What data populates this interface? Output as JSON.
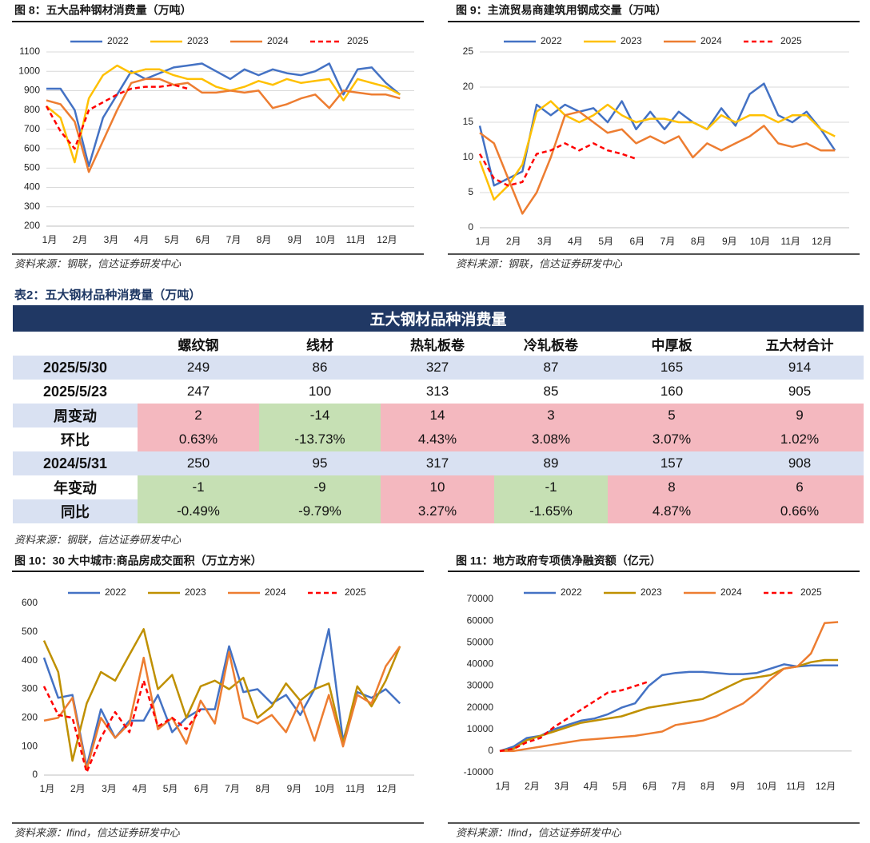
{
  "chart_data": [
    {
      "type": "line",
      "title": "图 8：五大品种钢材消费量（万吨）",
      "source": "资料来源：钢联，信达证券研发中心",
      "x": [
        1,
        3,
        5,
        7,
        9,
        11,
        13,
        15,
        17,
        19,
        21,
        23,
        25,
        27,
        29,
        31,
        33,
        35,
        37,
        39,
        41,
        43,
        45,
        47,
        49,
        51
      ],
      "xlim": [
        1,
        53
      ],
      "xticks": [
        {
          "value": 1,
          "label": "1月"
        },
        {
          "value": 5.3,
          "label": "2月"
        },
        {
          "value": 9.7,
          "label": "3月"
        },
        {
          "value": 14,
          "label": "4月"
        },
        {
          "value": 18.3,
          "label": "5月"
        },
        {
          "value": 22.7,
          "label": "6月"
        },
        {
          "value": 27,
          "label": "7月"
        },
        {
          "value": 31.3,
          "label": "8月"
        },
        {
          "value": 35.7,
          "label": "9月"
        },
        {
          "value": 40,
          "label": "10月"
        },
        {
          "value": 44.3,
          "label": "11月"
        },
        {
          "value": 48.7,
          "label": "12月"
        }
      ],
      "ylim": [
        200,
        1100
      ],
      "yticks": [
        200,
        300,
        400,
        500,
        600,
        700,
        800,
        900,
        1000,
        1100
      ],
      "grid": true,
      "series": [
        {
          "name": "2022",
          "color": "#4472c4",
          "values": [
            910,
            910,
            800,
            510,
            760,
            880,
            1000,
            960,
            990,
            1020,
            1030,
            1040,
            1000,
            960,
            1010,
            980,
            1010,
            990,
            980,
            1000,
            1040,
            880,
            1010,
            1020,
            940,
            880
          ]
        },
        {
          "name": "2023",
          "color": "#ffc000",
          "values": [
            820,
            760,
            530,
            860,
            980,
            1030,
            990,
            1010,
            1010,
            980,
            960,
            960,
            920,
            900,
            920,
            950,
            930,
            960,
            940,
            950,
            960,
            850,
            960,
            940,
            920,
            880
          ]
        },
        {
          "name": "2024",
          "color": "#ed7d31",
          "values": [
            850,
            830,
            740,
            480,
            640,
            800,
            940,
            960,
            960,
            930,
            940,
            890,
            890,
            900,
            890,
            900,
            810,
            830,
            860,
            880,
            810,
            900,
            890,
            880,
            880,
            860
          ]
        },
        {
          "name": "2025",
          "color": "#ff0000",
          "dashed": true,
          "values": [
            820,
            690,
            600,
            800,
            840,
            880,
            910,
            920,
            920,
            930,
            910,
            null,
            null,
            null,
            null,
            null,
            null,
            null,
            null,
            null,
            null,
            null,
            null,
            null,
            null,
            null
          ]
        }
      ]
    },
    {
      "type": "line",
      "title": "图 9：主流贸易商建筑用钢成交量（万吨）",
      "source": "资料来源：钢联，信达证券研发中心",
      "x": [
        1,
        3,
        5,
        7,
        9,
        11,
        13,
        15,
        17,
        19,
        21,
        23,
        25,
        27,
        29,
        31,
        33,
        35,
        37,
        39,
        41,
        43,
        45,
        47,
        49,
        51
      ],
      "xlim": [
        1,
        53
      ],
      "xticks": [
        {
          "value": 1,
          "label": "1月"
        },
        {
          "value": 5.3,
          "label": "2月"
        },
        {
          "value": 9.7,
          "label": "3月"
        },
        {
          "value": 14,
          "label": "4月"
        },
        {
          "value": 18.3,
          "label": "5月"
        },
        {
          "value": 22.7,
          "label": "6月"
        },
        {
          "value": 27,
          "label": "7月"
        },
        {
          "value": 31.3,
          "label": "8月"
        },
        {
          "value": 35.7,
          "label": "9月"
        },
        {
          "value": 40,
          "label": "10月"
        },
        {
          "value": 44.3,
          "label": "11月"
        },
        {
          "value": 48.7,
          "label": "12月"
        }
      ],
      "ylim": [
        0,
        25
      ],
      "yticks": [
        0,
        5,
        10,
        15,
        20,
        25
      ],
      "grid": true,
      "series": [
        {
          "name": "2022",
          "color": "#4472c4",
          "values": [
            14.5,
            6,
            7,
            8,
            17.5,
            16,
            17.5,
            16.5,
            17,
            15,
            18,
            14,
            16.5,
            14,
            16.5,
            15,
            14,
            17,
            14.5,
            19,
            20.5,
            16,
            15,
            16.5,
            14,
            11
          ]
        },
        {
          "name": "2023",
          "color": "#ffc000",
          "values": [
            9.5,
            4,
            6,
            9,
            16.5,
            18,
            16,
            15,
            16,
            17.5,
            16,
            15,
            15.5,
            15.5,
            15,
            15,
            14,
            16,
            15,
            16,
            16,
            15,
            16,
            16,
            14,
            13
          ]
        },
        {
          "name": "2024",
          "color": "#ed7d31",
          "values": [
            13.5,
            12,
            7,
            2,
            5,
            10,
            16,
            16.5,
            15,
            13.5,
            14,
            12,
            13,
            12,
            13,
            10,
            12,
            11,
            12,
            13,
            14.5,
            12,
            11.5,
            12,
            11,
            11
          ]
        },
        {
          "name": "2025",
          "color": "#ff0000",
          "dashed": true,
          "values": [
            10.5,
            7,
            6,
            6.5,
            10.5,
            11,
            12,
            11,
            12,
            11,
            10.5,
            9.8,
            null,
            null,
            null,
            null,
            null,
            null,
            null,
            null,
            null,
            null,
            null,
            null,
            null,
            null
          ]
        }
      ]
    },
    {
      "type": "line",
      "title": "图 10：30 大中城市:商品房成交面积（万立方米）",
      "source": "资料来源：Ifind，信达证券研发中心",
      "x": [
        1,
        3,
        5,
        7,
        9,
        11,
        13,
        15,
        17,
        19,
        21,
        23,
        25,
        27,
        29,
        31,
        33,
        35,
        37,
        39,
        41,
        43,
        45,
        47,
        49,
        51
      ],
      "xlim": [
        1,
        53
      ],
      "xticks": [
        {
          "value": 1,
          "label": "1月"
        },
        {
          "value": 5.3,
          "label": "2月"
        },
        {
          "value": 9.7,
          "label": "3月"
        },
        {
          "value": 14,
          "label": "4月"
        },
        {
          "value": 18.3,
          "label": "5月"
        },
        {
          "value": 22.7,
          "label": "6月"
        },
        {
          "value": 27,
          "label": "7月"
        },
        {
          "value": 31.3,
          "label": "8月"
        },
        {
          "value": 35.7,
          "label": "9月"
        },
        {
          "value": 40,
          "label": "10月"
        },
        {
          "value": 44.3,
          "label": "11月"
        },
        {
          "value": 48.7,
          "label": "12月"
        }
      ],
      "ylim": [
        0,
        600
      ],
      "yticks": [
        0,
        100,
        200,
        300,
        400,
        500,
        600
      ],
      "grid": false,
      "series": [
        {
          "name": "2022",
          "color": "#4472c4",
          "values": [
            410,
            270,
            280,
            30,
            230,
            130,
            190,
            190,
            280,
            150,
            200,
            230,
            230,
            450,
            290,
            300,
            250,
            280,
            210,
            300,
            510,
            120,
            290,
            270,
            300,
            250
          ]
        },
        {
          "name": "2023",
          "color": "#bf9000",
          "values": [
            470,
            360,
            50,
            250,
            360,
            330,
            420,
            510,
            300,
            350,
            200,
            310,
            330,
            300,
            340,
            200,
            240,
            320,
            260,
            300,
            320,
            110,
            310,
            240,
            330,
            450
          ]
        },
        {
          "name": "2024",
          "color": "#ed7d31",
          "values": [
            190,
            200,
            270,
            20,
            200,
            130,
            180,
            410,
            160,
            200,
            110,
            260,
            180,
            430,
            200,
            180,
            210,
            150,
            260,
            120,
            280,
            100,
            280,
            250,
            380,
            450
          ]
        },
        {
          "name": "2025",
          "color": "#ff0000",
          "dashed": true,
          "values": [
            310,
            210,
            200,
            10,
            130,
            220,
            150,
            330,
            170,
            200,
            160,
            230,
            null,
            null,
            null,
            null,
            null,
            null,
            null,
            null,
            null,
            null,
            null,
            null,
            null,
            null
          ]
        }
      ]
    },
    {
      "type": "line",
      "title": "图 11：地方政府专项债净融资额（亿元）",
      "source": "资料来源：Ifind，信达证券研发中心",
      "x": [
        1,
        3,
        5,
        7,
        9,
        11,
        13,
        15,
        17,
        19,
        21,
        23,
        25,
        27,
        29,
        31,
        33,
        35,
        37,
        39,
        41,
        43,
        45,
        47,
        49,
        51
      ],
      "xlim": [
        1,
        53
      ],
      "xticks": [
        {
          "value": 1,
          "label": "1月"
        },
        {
          "value": 5.3,
          "label": "2月"
        },
        {
          "value": 9.7,
          "label": "3月"
        },
        {
          "value": 14,
          "label": "4月"
        },
        {
          "value": 18.3,
          "label": "5月"
        },
        {
          "value": 22.7,
          "label": "6月"
        },
        {
          "value": 27,
          "label": "7月"
        },
        {
          "value": 31.3,
          "label": "8月"
        },
        {
          "value": 35.7,
          "label": "9月"
        },
        {
          "value": 40,
          "label": "10月"
        },
        {
          "value": 44.3,
          "label": "11月"
        },
        {
          "value": 48.7,
          "label": "12月"
        }
      ],
      "ylim": [
        -10000,
        70000
      ],
      "yticks": [
        -10000,
        0,
        10000,
        20000,
        30000,
        40000,
        50000,
        60000,
        70000
      ],
      "grid": false,
      "series": [
        {
          "name": "2022",
          "color": "#4472c4",
          "values": [
            0,
            2000,
            6000,
            7000,
            10000,
            12000,
            14000,
            15000,
            17000,
            20000,
            22000,
            30000,
            35000,
            36000,
            36500,
            36500,
            36000,
            35500,
            35500,
            36000,
            38000,
            40000,
            39000,
            39500,
            39500,
            39500
          ]
        },
        {
          "name": "2023",
          "color": "#bf9000",
          "values": [
            0,
            1000,
            5000,
            7000,
            9000,
            11000,
            13000,
            14000,
            15000,
            16000,
            18000,
            20000,
            21000,
            22000,
            23000,
            24000,
            27000,
            30000,
            33000,
            34000,
            35000,
            38000,
            39000,
            41000,
            42000,
            42000
          ]
        },
        {
          "name": "2024",
          "color": "#ed7d31",
          "values": [
            0,
            0,
            1000,
            2000,
            3000,
            4000,
            5000,
            5500,
            6000,
            6500,
            7000,
            8000,
            9000,
            12000,
            13000,
            14000,
            16000,
            19000,
            22000,
            27000,
            33000,
            38000,
            39000,
            45000,
            59000,
            59500
          ]
        },
        {
          "name": "2025",
          "color": "#ff0000",
          "dashed": true,
          "values": [
            0,
            1000,
            4000,
            6000,
            11000,
            15000,
            19000,
            23000,
            27000,
            28000,
            30000,
            32000,
            null,
            null,
            null,
            null,
            null,
            null,
            null,
            null,
            null,
            null,
            null,
            null,
            null,
            null
          ]
        }
      ]
    }
  ],
  "table": {
    "caption": "表2：五大钢材品种消费量（万吨）",
    "title": "五大钢材品种消费量",
    "columns": [
      "螺纹钢",
      "线材",
      "热轧板卷",
      "冷轧板卷",
      "中厚板",
      "五大材合计"
    ],
    "rows": [
      {
        "label": "2025/5/30",
        "cells": [
          "249",
          "86",
          "327",
          "87",
          "165",
          "914"
        ]
      },
      {
        "label": "2025/5/23",
        "cells": [
          "247",
          "100",
          "313",
          "85",
          "160",
          "905"
        ]
      },
      {
        "label": "周变动",
        "signed": true,
        "cells": [
          "2",
          "-14",
          "14",
          "3",
          "5",
          "9"
        ]
      },
      {
        "label": "环比",
        "signed": true,
        "cells": [
          "0.63%",
          "-13.73%",
          "4.43%",
          "3.08%",
          "3.07%",
          "1.02%"
        ]
      },
      {
        "label": "2024/5/31",
        "cells": [
          "250",
          "95",
          "317",
          "89",
          "157",
          "908"
        ]
      },
      {
        "label": "年变动",
        "signed": true,
        "cells": [
          "-1",
          "-9",
          "10",
          "-1",
          "8",
          "6"
        ]
      },
      {
        "label": "同比",
        "signed": true,
        "cells": [
          "-0.49%",
          "-9.79%",
          "3.27%",
          "-1.65%",
          "4.87%",
          "0.66%"
        ]
      }
    ],
    "source": "资料来源：钢联，信达证券研发中心"
  }
}
